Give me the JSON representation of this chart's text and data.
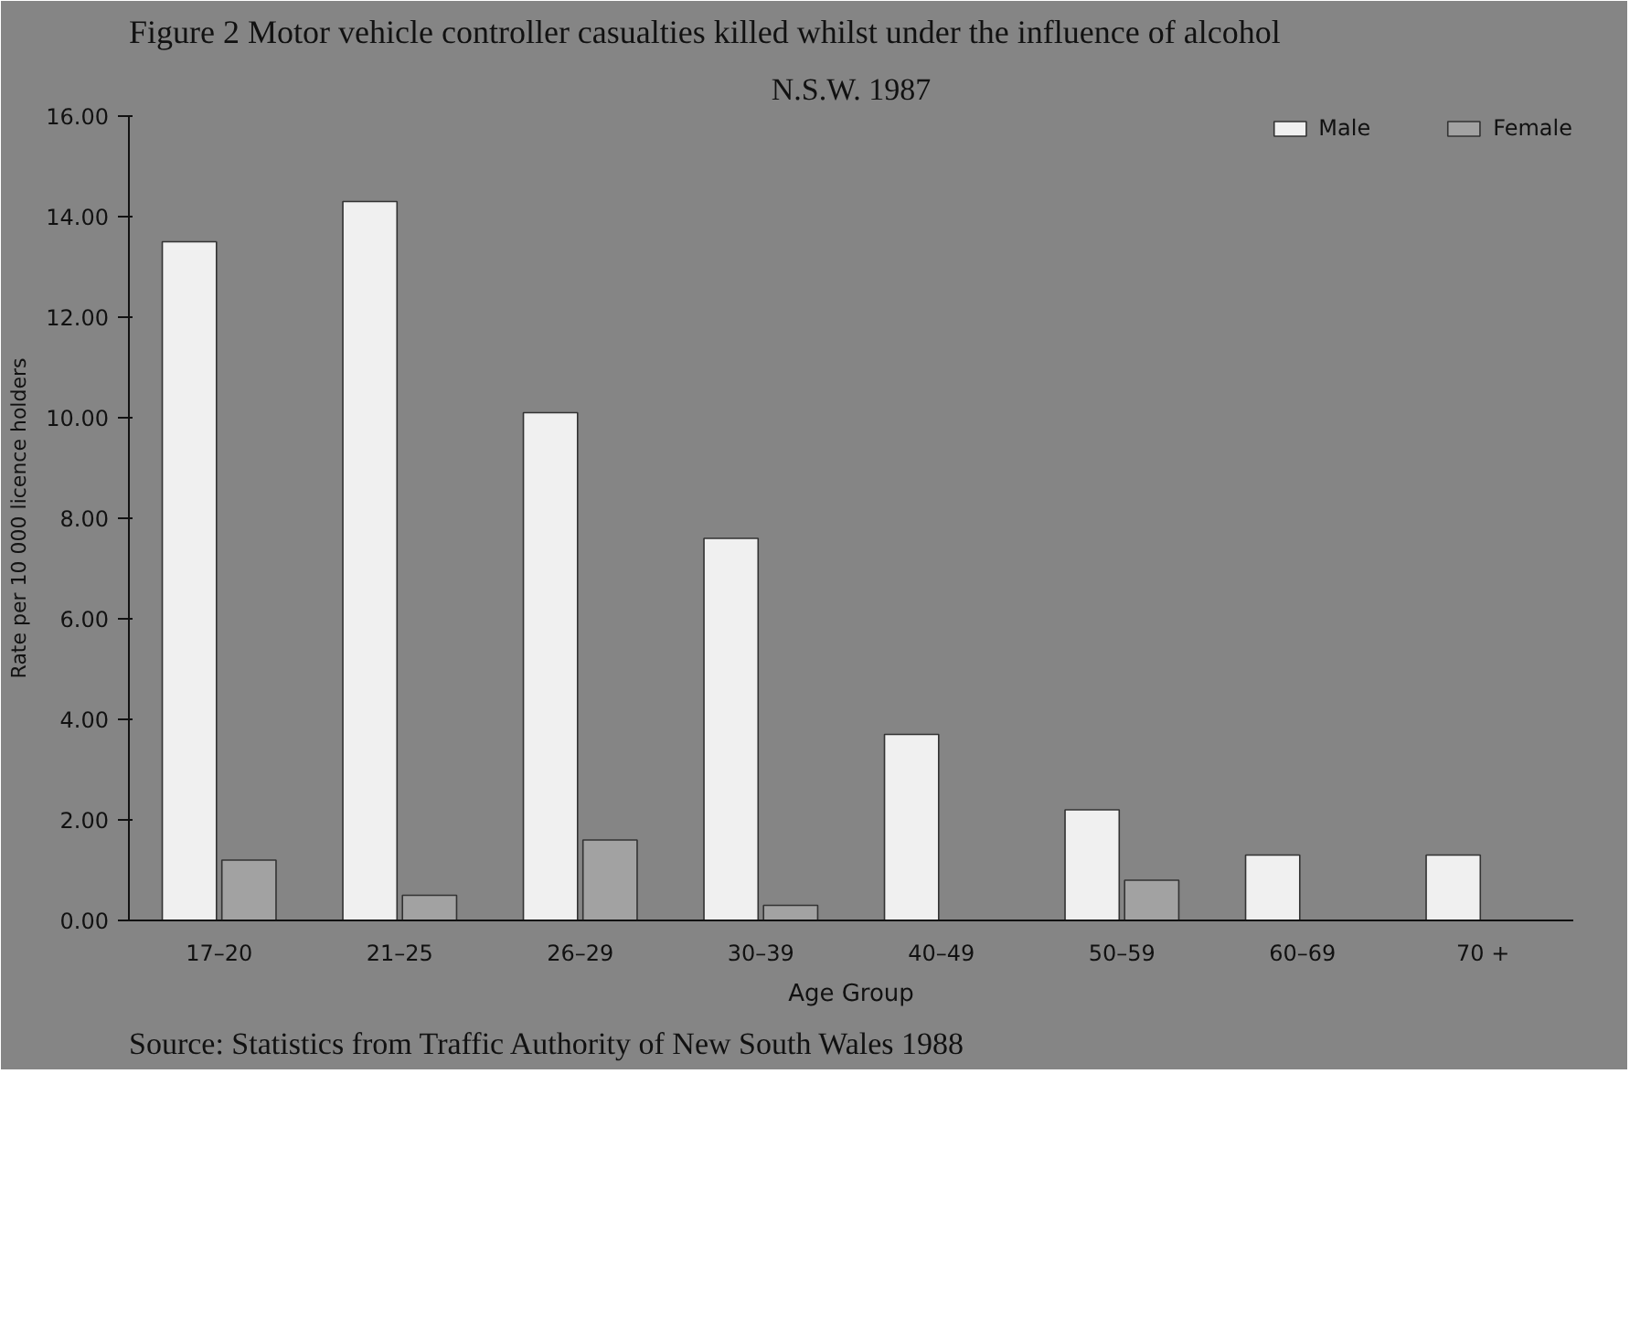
{
  "chart_data": {
    "type": "bar",
    "title": "Figure 2  Motor vehicle controller casualties killed whilst under the influence of alcohol",
    "subtitle": "N.S.W. 1987",
    "xlabel": "Age Group",
    "ylabel": "Rate per 10 000 licence holders",
    "categories": [
      "17–20",
      "21–25",
      "26–29",
      "30–39",
      "40–49",
      "50–59",
      "60–69",
      "70 +"
    ],
    "series": [
      {
        "name": "Male",
        "color": "#f0f0f0",
        "values": [
          13.5,
          14.3,
          10.1,
          7.6,
          3.7,
          2.2,
          1.3,
          1.3
        ]
      },
      {
        "name": "Female",
        "color": "#a2a2a2",
        "values": [
          1.2,
          0.5,
          1.6,
          0.3,
          null,
          0.8,
          null,
          null
        ]
      }
    ],
    "ylim": [
      0,
      16
    ],
    "yticks": [
      {
        "value": 0,
        "label": "0.00"
      },
      {
        "value": 2,
        "label": "2.00"
      },
      {
        "value": 4,
        "label": "4.00"
      },
      {
        "value": 6,
        "label": "6.00"
      },
      {
        "value": 8,
        "label": "8.00"
      },
      {
        "value": 10,
        "label": "10.00"
      },
      {
        "value": 12,
        "label": "12.00"
      },
      {
        "value": 14,
        "label": "14.00"
      },
      {
        "value": 16,
        "label": "16.00"
      }
    ],
    "legend": "top right",
    "grid": false,
    "annotations": [
      "Source:  Statistics from Traffic Authority of New South Wales 1988"
    ]
  }
}
